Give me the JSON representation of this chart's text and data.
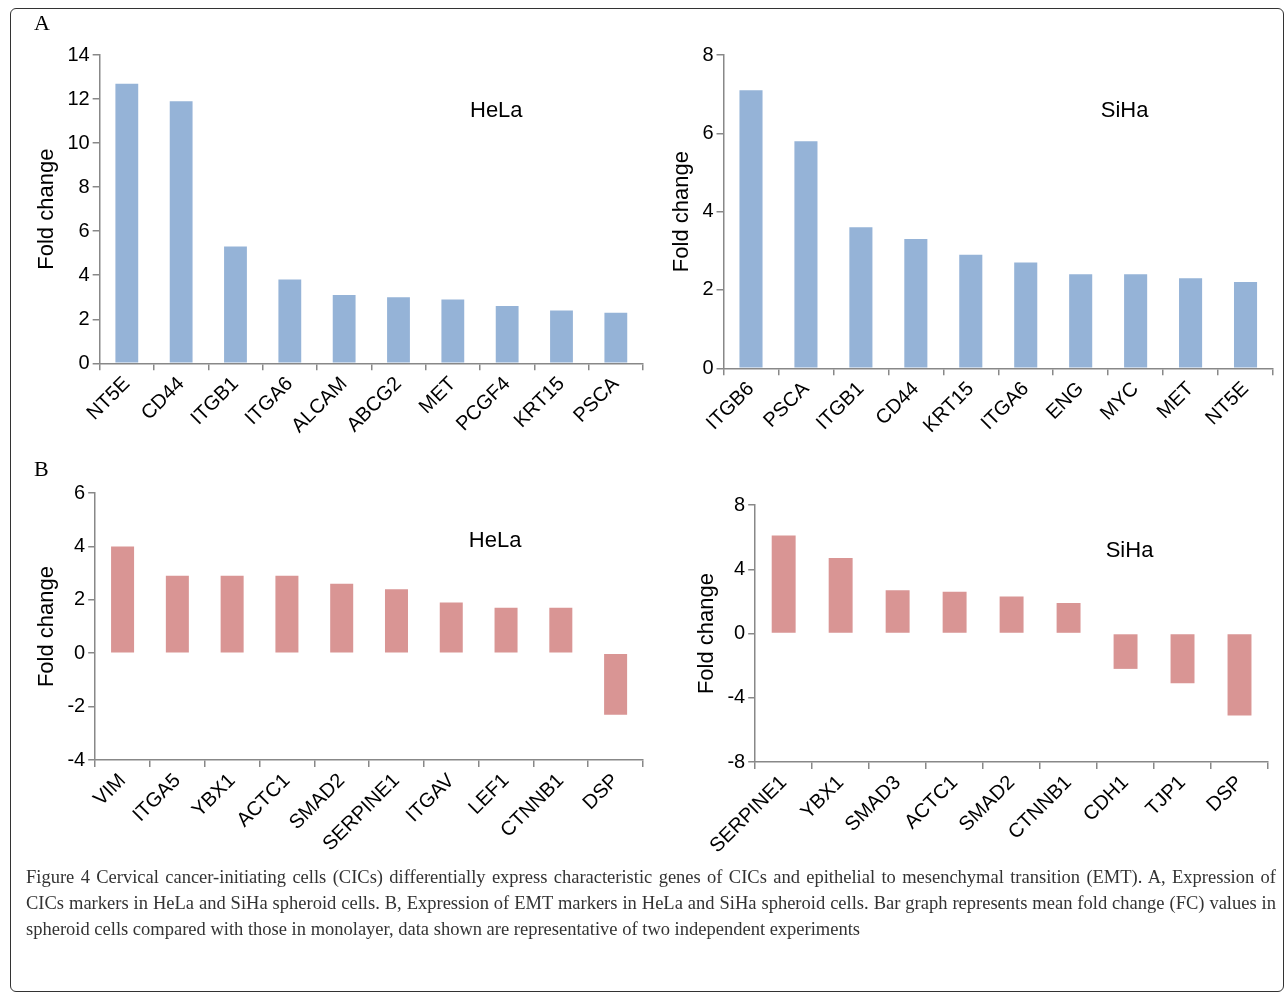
{
  "chart_data": [
    {
      "type": "bar",
      "title": "A",
      "ylabel": "Fold change",
      "annotations": [
        "HeLa"
      ],
      "categories": [
        "NT5E",
        "CD44",
        "ITGB1",
        "ITGA6",
        "ALCAM",
        "ABCG2",
        "MET",
        "PCGF4",
        "KRT15",
        "PSCA"
      ],
      "series": [
        {
          "color": "#95b3d7",
          "values": [
            12.7,
            11.9,
            5.3,
            3.8,
            3.1,
            3.0,
            2.9,
            2.6,
            2.4,
            2.3
          ]
        }
      ],
      "ylim": [
        0,
        14
      ],
      "yticks": [
        0,
        2,
        4,
        6,
        8,
        10,
        12,
        14
      ],
      "grid": false,
      "legend": false
    },
    {
      "type": "bar",
      "ylabel": "Fold change",
      "annotations": [
        "SiHa"
      ],
      "categories": [
        "ITGB6",
        "PSCA",
        "ITGB1",
        "CD44",
        "KRT15",
        "ITGA6",
        "ENG",
        "MYC",
        "MET",
        "NT5E"
      ],
      "series": [
        {
          "color": "#95b3d7",
          "values": [
            7.1,
            5.8,
            3.6,
            3.3,
            2.9,
            2.7,
            2.4,
            2.4,
            2.3,
            2.2
          ]
        }
      ],
      "ylim": [
        0,
        8
      ],
      "yticks": [
        0,
        2,
        4,
        6,
        8
      ],
      "grid": false,
      "legend": false
    },
    {
      "type": "bar",
      "title": "B",
      "ylabel": "Fold change",
      "annotations": [
        "HeLa"
      ],
      "categories": [
        "VIM",
        "ITGA5",
        "YBX1",
        "ACTC1",
        "SMAD2",
        "SERPINE1",
        "ITGAV",
        "LEF1",
        "CTNNB1",
        "DSP"
      ],
      "series": [
        {
          "color": "#d99594",
          "values": [
            4.0,
            2.9,
            2.9,
            2.9,
            2.6,
            2.4,
            1.9,
            1.7,
            1.7,
            -2.3
          ]
        }
      ],
      "ylim": [
        -4,
        6
      ],
      "yticks": [
        -4,
        -2,
        0,
        2,
        4,
        6
      ],
      "grid": false,
      "legend": false
    },
    {
      "type": "bar",
      "ylabel": "Fold change",
      "annotations": [
        "SiHa",
        "Figure 4 Cervical cancer-initiating cells (CICs) differentially express characteristic genes of CICs and epithelial to mesenchymal transition (EMT). A, Expression of CICs markers in HeLa and SiHa spheroid cells. B, Expression of EMT markers in HeLa and SiHa spheroid cells. Bar graph represents mean fold change (FC) values in spheroid cells compared with those in monolayer, data shown are representative of two independent experiments"
      ],
      "categories": [
        "SERPINE1",
        "YBX1",
        "SMAD3",
        "ACTC1",
        "SMAD2",
        "CTNNB1",
        "CDH1",
        "TJP1",
        "DSP"
      ],
      "series": [
        {
          "color": "#d99594",
          "values": [
            6.1,
            4.7,
            2.7,
            2.6,
            2.3,
            1.9,
            -2.2,
            -3.1,
            -5.1
          ]
        }
      ],
      "ylim": [
        -8,
        8
      ],
      "yticks": [
        -8,
        -4,
        0,
        4,
        8
      ],
      "grid": false,
      "legend": false
    }
  ]
}
